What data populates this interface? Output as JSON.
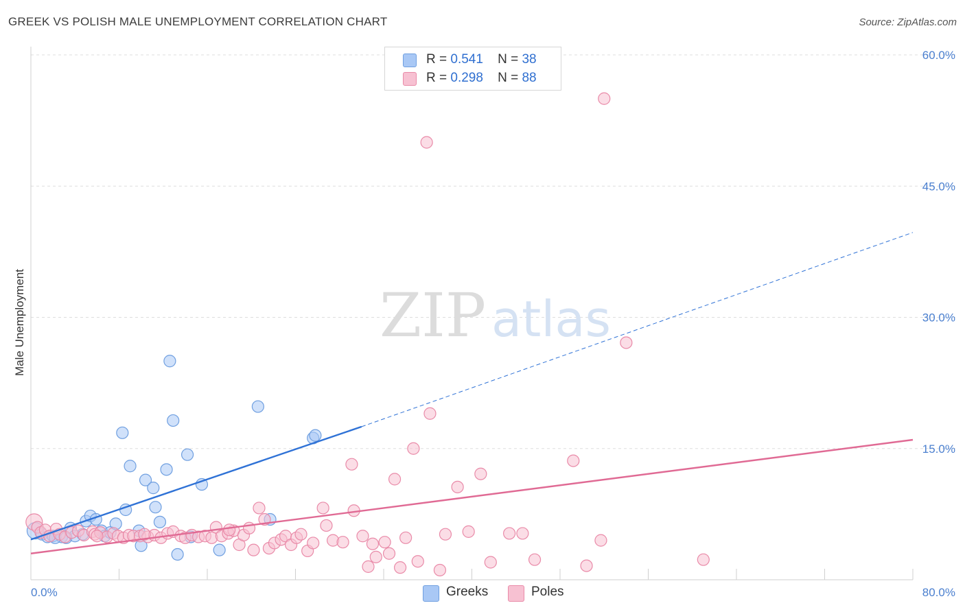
{
  "title": "GREEK VS POLISH MALE UNEMPLOYMENT CORRELATION CHART",
  "source": "Source: ZipAtlas.com",
  "watermark": {
    "zip": "ZIP",
    "atlas": "atlas"
  },
  "legend": {
    "rows": [
      {
        "r_label": "R =",
        "r_value": "0.541",
        "n_label": "N =",
        "n_value": "38",
        "color": "#a9c8f5",
        "border": "#6f9fe0"
      },
      {
        "r_label": "R =",
        "r_value": "0.298",
        "n_label": "N =",
        "n_value": "88",
        "color": "#f7c1d2",
        "border": "#e98aa8"
      }
    ]
  },
  "bottom_legend": [
    {
      "label": "Greeks",
      "color": "#a9c8f5",
      "border": "#6f9fe0"
    },
    {
      "label": "Poles",
      "color": "#f7c1d2",
      "border": "#e98aa8"
    }
  ],
  "chart_data": {
    "type": "scatter",
    "ylabel": "Male Unemployment",
    "xlim": [
      0,
      80
    ],
    "ylim": [
      0,
      60
    ],
    "x_tick_labels": [
      "0.0%",
      "80.0%"
    ],
    "y_tick_labels": [
      "15.0%",
      "30.0%",
      "45.0%",
      "60.0%"
    ],
    "y_ticks": [
      15,
      30,
      45,
      60
    ],
    "grid": "horizontal dashed",
    "series": [
      {
        "name": "Greeks",
        "color": "#6f9fe0",
        "fill": "#a9c8f5",
        "points": [
          [
            0.4,
            5.6
          ],
          [
            1.0,
            5.2
          ],
          [
            1.5,
            4.9
          ],
          [
            2.0,
            5.0
          ],
          [
            2.8,
            4.9
          ],
          [
            3.2,
            4.8
          ],
          [
            3.6,
            5.9
          ],
          [
            4.0,
            5.0
          ],
          [
            4.7,
            5.2
          ],
          [
            5.0,
            6.7
          ],
          [
            5.4,
            7.3
          ],
          [
            5.9,
            6.9
          ],
          [
            6.4,
            5.6
          ],
          [
            6.7,
            5.0
          ],
          [
            7.2,
            5.4
          ],
          [
            7.7,
            6.4
          ],
          [
            8.3,
            16.8
          ],
          [
            8.6,
            8.0
          ],
          [
            9.0,
            13.0
          ],
          [
            9.8,
            5.6
          ],
          [
            10.0,
            3.9
          ],
          [
            10.4,
            11.4
          ],
          [
            11.1,
            10.5
          ],
          [
            11.3,
            8.3
          ],
          [
            11.7,
            6.6
          ],
          [
            12.3,
            12.6
          ],
          [
            12.6,
            25.0
          ],
          [
            12.9,
            18.2
          ],
          [
            13.3,
            2.9
          ],
          [
            14.2,
            14.3
          ],
          [
            14.5,
            4.9
          ],
          [
            15.5,
            10.9
          ],
          [
            17.1,
            3.4
          ],
          [
            20.6,
            19.8
          ],
          [
            21.7,
            6.9
          ],
          [
            25.6,
            16.2
          ],
          [
            25.8,
            16.5
          ],
          [
            2.2,
            4.8
          ]
        ],
        "trend": {
          "x0": 0,
          "y0": 4.6,
          "x1": 30,
          "y1": 17.5,
          "dashed_to": [
            80,
            39.7
          ]
        }
      },
      {
        "name": "Poles",
        "color": "#e98aa8",
        "fill": "#f7c1d2",
        "points": [
          [
            0.3,
            6.6
          ],
          [
            0.6,
            6.0
          ],
          [
            0.9,
            5.4
          ],
          [
            1.3,
            5.7
          ],
          [
            1.7,
            5.0
          ],
          [
            2.3,
            5.8
          ],
          [
            2.6,
            5.2
          ],
          [
            3.1,
            4.9
          ],
          [
            3.7,
            5.4
          ],
          [
            4.3,
            5.6
          ],
          [
            4.8,
            5.1
          ],
          [
            5.6,
            5.5
          ],
          [
            5.8,
            5.2
          ],
          [
            6.3,
            5.4
          ],
          [
            6.9,
            4.9
          ],
          [
            7.5,
            5.3
          ],
          [
            7.9,
            5.0
          ],
          [
            8.4,
            4.8
          ],
          [
            8.9,
            5.1
          ],
          [
            9.3,
            5.0
          ],
          [
            9.9,
            5.0
          ],
          [
            10.6,
            4.9
          ],
          [
            11.2,
            5.1
          ],
          [
            11.8,
            4.8
          ],
          [
            12.4,
            5.3
          ],
          [
            12.9,
            5.5
          ],
          [
            13.6,
            5.0
          ],
          [
            14.0,
            4.8
          ],
          [
            14.6,
            5.1
          ],
          [
            15.2,
            4.9
          ],
          [
            15.8,
            5.0
          ],
          [
            16.4,
            4.8
          ],
          [
            16.8,
            6.0
          ],
          [
            17.3,
            5.0
          ],
          [
            17.9,
            5.3
          ],
          [
            18.4,
            5.6
          ],
          [
            18.9,
            4.0
          ],
          [
            19.3,
            5.1
          ],
          [
            19.8,
            5.9
          ],
          [
            20.2,
            3.4
          ],
          [
            20.7,
            8.2
          ],
          [
            21.2,
            6.9
          ],
          [
            21.6,
            3.6
          ],
          [
            22.1,
            4.2
          ],
          [
            22.7,
            4.6
          ],
          [
            23.1,
            5.0
          ],
          [
            23.6,
            4.0
          ],
          [
            24.1,
            4.8
          ],
          [
            24.5,
            5.2
          ],
          [
            25.1,
            3.3
          ],
          [
            25.6,
            4.2
          ],
          [
            26.5,
            8.2
          ],
          [
            26.8,
            6.2
          ],
          [
            27.4,
            4.5
          ],
          [
            28.3,
            4.3
          ],
          [
            29.1,
            13.2
          ],
          [
            29.3,
            7.9
          ],
          [
            30.1,
            5.0
          ],
          [
            30.6,
            1.5
          ],
          [
            31.0,
            4.1
          ],
          [
            31.3,
            2.6
          ],
          [
            32.1,
            4.3
          ],
          [
            32.5,
            3.0
          ],
          [
            33.0,
            11.5
          ],
          [
            33.5,
            1.4
          ],
          [
            34.0,
            4.8
          ],
          [
            34.7,
            15.0
          ],
          [
            35.1,
            2.1
          ],
          [
            35.9,
            50.0
          ],
          [
            36.2,
            19.0
          ],
          [
            37.1,
            1.1
          ],
          [
            37.6,
            5.2
          ],
          [
            38.7,
            10.6
          ],
          [
            39.7,
            5.5
          ],
          [
            40.8,
            12.1
          ],
          [
            41.7,
            2.0
          ],
          [
            43.4,
            5.3
          ],
          [
            44.6,
            5.3
          ],
          [
            45.7,
            2.3
          ],
          [
            49.2,
            13.6
          ],
          [
            50.4,
            1.6
          ],
          [
            51.7,
            4.5
          ],
          [
            52.0,
            55.0
          ],
          [
            54.0,
            27.1
          ],
          [
            61.0,
            2.3
          ],
          [
            18.0,
            5.7
          ],
          [
            10.3,
            5.2
          ],
          [
            6.0,
            5.0
          ]
        ],
        "trend": {
          "x0": 0,
          "y0": 3.0,
          "x1": 80,
          "y1": 16.0
        }
      }
    ]
  }
}
